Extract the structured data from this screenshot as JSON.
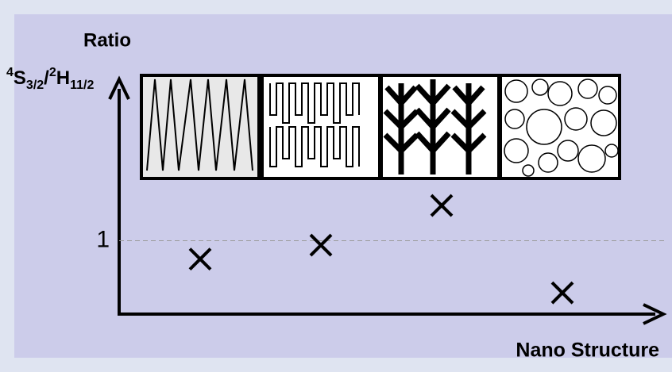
{
  "chart_data": {
    "type": "scatter",
    "title": "Ratio",
    "y_label": [
      "4",
      "S",
      "3/2",
      "/",
      "2",
      "H",
      "11/2"
    ],
    "x_label": "Nano Structure",
    "categories": [
      null,
      null,
      null,
      null
    ],
    "values": [
      0.75,
      0.94,
      1.48,
      0.29
    ],
    "color": "#000000",
    "ylim": [
      0,
      3.2
    ],
    "yticks": [
      1
    ],
    "grid": true
  }
}
